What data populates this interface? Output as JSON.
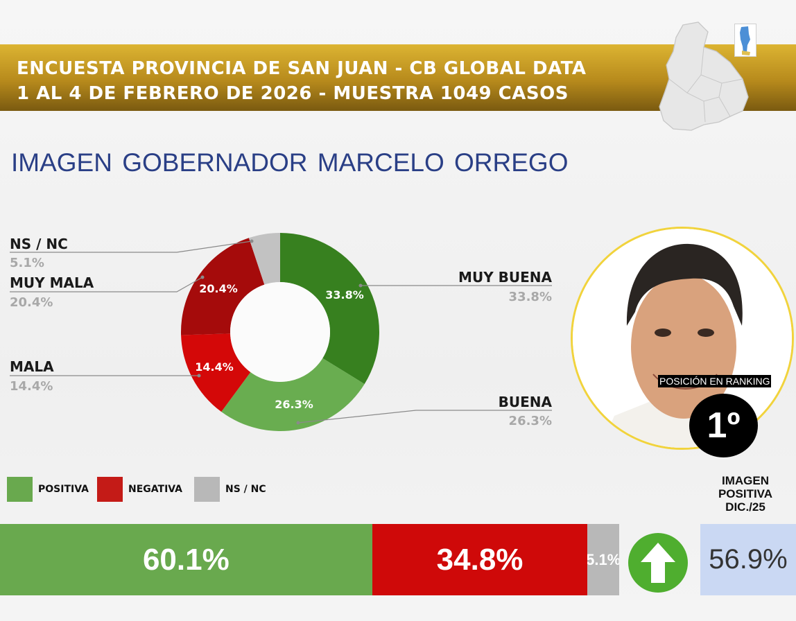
{
  "header": {
    "line1": "ENCUESTA PROVINCIA DE SAN JUAN - CB GLOBAL DATA",
    "line2": "1 AL 4 DE FEBRERO DE 2026 - MUESTRA 1049 CASOS"
  },
  "title": "IMAGEN GOBERNADOR  MARCELO ORREGO",
  "colors": {
    "muy_buena": "#37801f",
    "buena": "#69ad50",
    "mala": "#d40808",
    "muy_mala": "#a50b0b",
    "ns_nc": "#c2c2c2",
    "positiva": "#69a94e",
    "negativa": "#cf0909",
    "header_gold": "#c99f26",
    "title_blue": "#2a3f86"
  },
  "chart_data": [
    {
      "type": "pie",
      "donut": true,
      "slices": [
        {
          "label": "MUY BUENA",
          "value": 33.8,
          "display": "33.8%",
          "color": "#37801f"
        },
        {
          "label": "BUENA",
          "value": 26.3,
          "display": "26.3%",
          "color": "#69ad50"
        },
        {
          "label": "MALA",
          "value": 14.4,
          "display": "14.4%",
          "color": "#d40808"
        },
        {
          "label": "MUY MALA",
          "value": 20.4,
          "display": "20.4%",
          "color": "#a50b0b"
        },
        {
          "label": "NS / NC",
          "value": 5.1,
          "display": "5.1%",
          "color": "#c2c2c2"
        }
      ]
    },
    {
      "type": "bar",
      "orientation": "horizontal-stacked",
      "segments": [
        {
          "label": "POSITIVA",
          "value": 60.1,
          "display": "60.1%",
          "color": "#69a94e"
        },
        {
          "label": "NEGATIVA",
          "value": 34.8,
          "display": "34.8%",
          "color": "#cf0909"
        },
        {
          "label": "NS / NC",
          "value": 5.1,
          "display": "5.1%",
          "color": "#b8b8b8"
        }
      ]
    }
  ],
  "legend": [
    {
      "label": "POSITIVA",
      "color": "#69a94e"
    },
    {
      "label": "NEGATIVA",
      "color": "#c41b17"
    },
    {
      "label": "NS / NC",
      "color": "#b8b8b8"
    }
  ],
  "ranking": {
    "label": "POSICIÓN EN RANKING",
    "position": "1º"
  },
  "previous": {
    "title_lines": [
      "IMAGEN",
      "POSITIVA",
      "DIC./25"
    ],
    "value": "56.9%",
    "trend_icon": "arrow-up-icon"
  }
}
